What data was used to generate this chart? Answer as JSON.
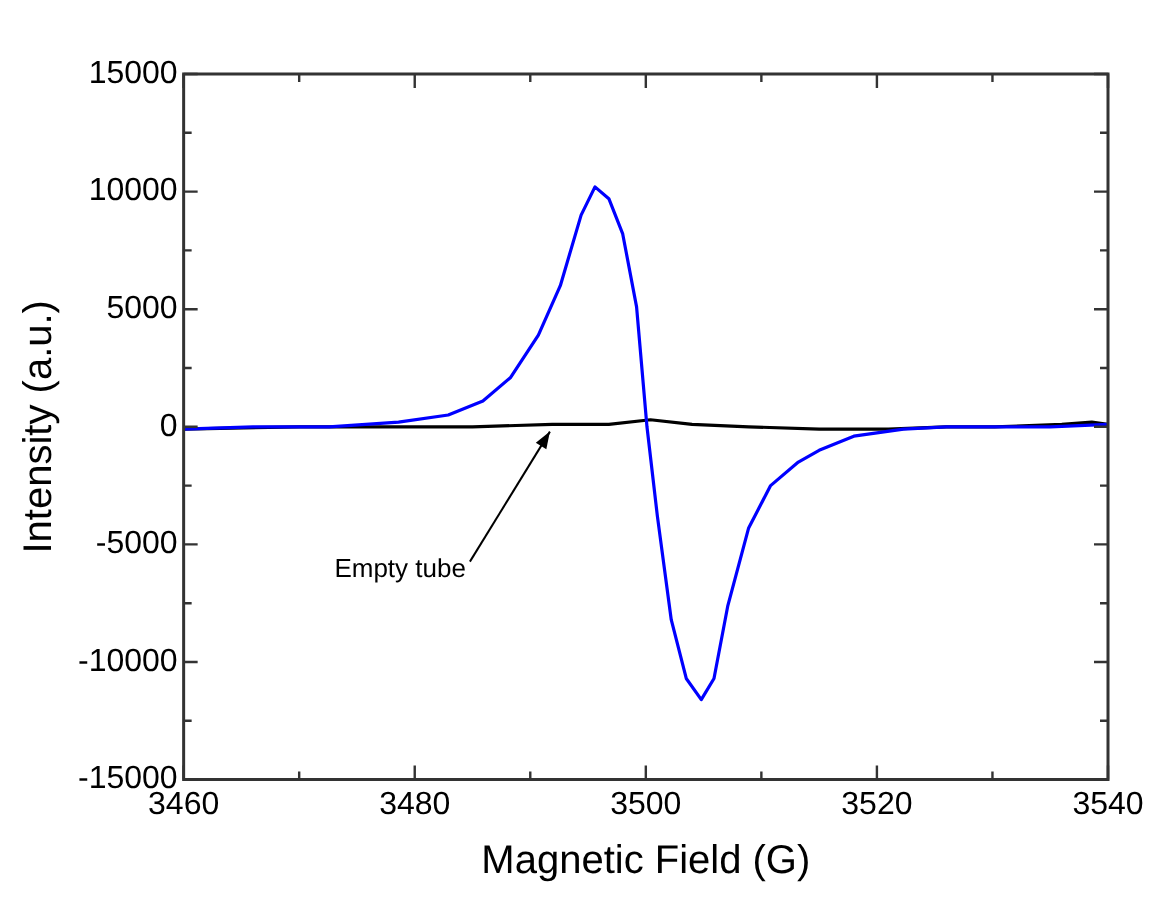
{
  "chart_data": {
    "type": "line",
    "xlabel": "Magnetic Field (G)",
    "ylabel": "Intensity (a.u.)",
    "xlim": [
      3460,
      3540
    ],
    "ylim": [
      -15000,
      15000
    ],
    "xticks": [
      3460,
      3480,
      3500,
      3520,
      3540
    ],
    "yticks": [
      -15000,
      -10000,
      -5000,
      0,
      5000,
      10000,
      15000
    ],
    "grid": false,
    "legend": false,
    "marker": "none",
    "line_style": "solid",
    "annotations": [
      {
        "text": "Empty tube",
        "x": 3491.7,
        "y": 50
      }
    ],
    "series": [
      {
        "color": "#0000ff",
        "x": [
          3460,
          3466,
          3472.6,
          3478.6,
          3482.9,
          3485.9,
          3488.3,
          3490.7,
          3492.6,
          3494.4,
          3495.6,
          3496.8,
          3498.0,
          3499.2,
          3500.1,
          3501.0,
          3502.2,
          3503.5,
          3504.8,
          3505.9,
          3507.1,
          3508.9,
          3510.8,
          3513.2,
          3515.0,
          3518.0,
          3522.3,
          3526,
          3530.2,
          3535,
          3540
        ],
        "values": [
          -100,
          0,
          0,
          200,
          500,
          1100,
          2100,
          3900,
          6000,
          9000,
          10200,
          9700,
          8200,
          5100,
          0,
          -3800,
          -8200,
          -10700,
          -11600,
          -10700,
          -7600,
          -4300,
          -2500,
          -1500,
          -1000,
          -400,
          -100,
          0,
          0,
          0,
          100
        ]
      },
      {
        "color": "#000000",
        "x": [
          3460,
          3470,
          3478.6,
          3485,
          3491.9,
          3496.8,
          3500.4,
          3504,
          3508.9,
          3515,
          3521,
          3526,
          3530.2,
          3536,
          3538.6,
          3540
        ],
        "values": [
          -100,
          0,
          0,
          0,
          100,
          100,
          300,
          100,
          0,
          -100,
          -100,
          0,
          0,
          100,
          200,
          100
        ]
      }
    ]
  }
}
